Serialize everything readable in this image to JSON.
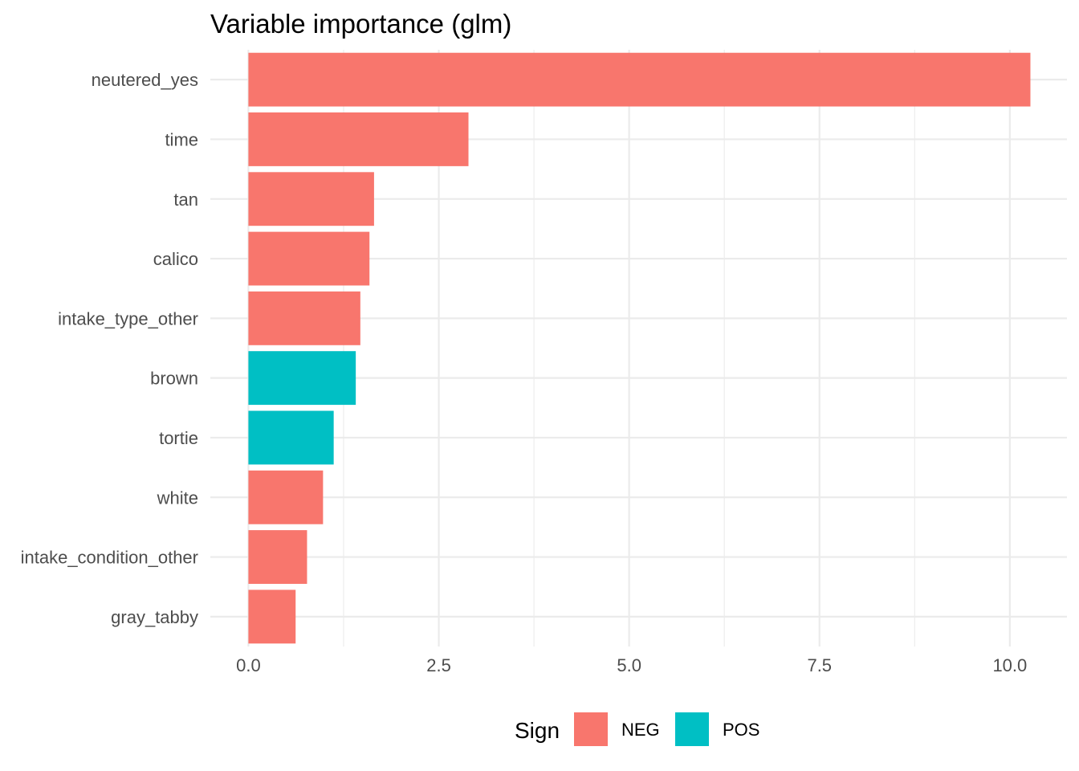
{
  "chart_data": {
    "type": "bar",
    "orientation": "horizontal",
    "title": "Variable importance (glm)",
    "xlabel": "",
    "ylabel": "",
    "categories": [
      "neutered_yes",
      "time",
      "tan",
      "calico",
      "intake_type_other",
      "brown",
      "tortie",
      "white",
      "intake_condition_other",
      "gray_tabby"
    ],
    "values": [
      10.27,
      2.89,
      1.65,
      1.59,
      1.47,
      1.41,
      1.12,
      0.98,
      0.77,
      0.62
    ],
    "sign": [
      "NEG",
      "NEG",
      "NEG",
      "NEG",
      "NEG",
      "POS",
      "POS",
      "NEG",
      "NEG",
      "NEG"
    ],
    "xlim": [
      -0.5,
      10.75
    ],
    "xticks": [
      0.0,
      2.5,
      5.0,
      7.5,
      10.0
    ],
    "xtick_labels": [
      "0.0",
      "2.5",
      "5.0",
      "7.5",
      "10.0"
    ],
    "grid": true,
    "legend": {
      "title": "Sign",
      "position": "bottom",
      "entries": [
        {
          "label": "NEG",
          "color": "#F8766D"
        },
        {
          "label": "POS",
          "color": "#00BFC4"
        }
      ]
    },
    "colors": {
      "NEG": "#F8766D",
      "POS": "#00BFC4"
    }
  }
}
